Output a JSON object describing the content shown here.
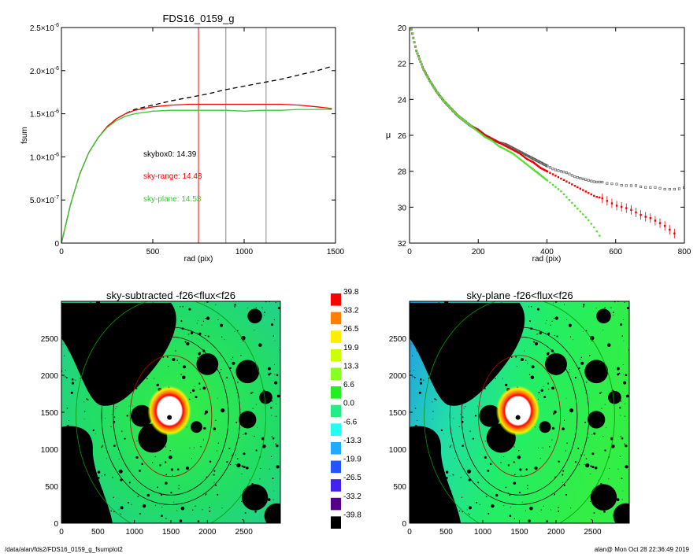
{
  "footer": {
    "left": "/data/alan/fds2/FDS16_0159_g_fsumplot2",
    "right": "alan@  Mon Oct 28 22:36:49 2019"
  },
  "colors": {
    "red": "#ff0000",
    "green": "#33cc33",
    "black": "#000000",
    "gray": "#999999"
  },
  "chart_data": [
    {
      "id": "fsum",
      "type": "line",
      "title": "FDS16_0159_g",
      "xlabel": "rad (pix)",
      "ylabel": "fsum",
      "xlim": [
        0,
        1500
      ],
      "ylim": [
        0,
        2.5e-06
      ],
      "xticks": [
        0,
        500,
        1000,
        1500
      ],
      "yticks": [
        {
          "v": 0,
          "m": "0",
          "e": ""
        },
        {
          "v": 5e-07,
          "m": "5.0×10",
          "e": "-7"
        },
        {
          "v": 1e-06,
          "m": "1.0×10",
          "e": "-6"
        },
        {
          "v": 1.5e-06,
          "m": "1.5×10",
          "e": "-6"
        },
        {
          "v": 2e-06,
          "m": "2.0×10",
          "e": "-6"
        },
        {
          "v": 2.5e-06,
          "m": "2.5×10",
          "e": "-6"
        }
      ],
      "vlines": [
        {
          "x": 750,
          "color": "#ff0000"
        },
        {
          "x": 900,
          "color": "#888888"
        },
        {
          "x": 1120,
          "color": "#888888"
        }
      ],
      "series": [
        {
          "name": "skybox0",
          "color": "#000000",
          "dash": true,
          "x": [
            0,
            50,
            100,
            150,
            200,
            250,
            300,
            350,
            400,
            500,
            600,
            700,
            800,
            900,
            1000,
            1100,
            1200,
            1300,
            1400,
            1480
          ],
          "y": [
            0,
            4.5e-07,
            8e-07,
            1.05e-06,
            1.22e-06,
            1.35e-06,
            1.44e-06,
            1.5e-06,
            1.55e-06,
            1.6e-06,
            1.65e-06,
            1.69e-06,
            1.73e-06,
            1.78e-06,
            1.82e-06,
            1.86e-06,
            1.9e-06,
            1.95e-06,
            2e-06,
            2.05e-06
          ]
        },
        {
          "name": "sky-range",
          "color": "#ff0000",
          "dash": false,
          "x": [
            0,
            50,
            100,
            150,
            200,
            250,
            300,
            350,
            400,
            500,
            600,
            700,
            800,
            900,
            1000,
            1100,
            1200,
            1300,
            1400,
            1480
          ],
          "y": [
            0,
            4.5e-07,
            8e-07,
            1.05e-06,
            1.22e-06,
            1.35e-06,
            1.44e-06,
            1.5e-06,
            1.54e-06,
            1.58e-06,
            1.6e-06,
            1.61e-06,
            1.61e-06,
            1.61e-06,
            1.61e-06,
            1.61e-06,
            1.61e-06,
            1.6e-06,
            1.58e-06,
            1.56e-06
          ]
        },
        {
          "name": "sky-plane",
          "color": "#33cc33",
          "dash": false,
          "x": [
            0,
            50,
            100,
            150,
            200,
            250,
            300,
            350,
            400,
            500,
            600,
            700,
            800,
            900,
            1000,
            1100,
            1200,
            1300,
            1400,
            1480
          ],
          "y": [
            0,
            4.5e-07,
            8e-07,
            1.05e-06,
            1.22e-06,
            1.34e-06,
            1.42e-06,
            1.47e-06,
            1.5e-06,
            1.53e-06,
            1.54e-06,
            1.54e-06,
            1.54e-06,
            1.54e-06,
            1.53e-06,
            1.54e-06,
            1.54e-06,
            1.55e-06,
            1.55e-06,
            1.55e-06
          ]
        }
      ],
      "annotations": [
        {
          "text": "skybox0: 14.39",
          "color": "#000000"
        },
        {
          "text": "sky-range: 14.48",
          "color": "#ff0000"
        },
        {
          "text": "sky-plane: 14.53",
          "color": "#33cc33"
        }
      ]
    },
    {
      "id": "mu",
      "type": "scatter",
      "title": "",
      "xlabel": "rad (pix)",
      "ylabel": "μ",
      "xlim": [
        0,
        800
      ],
      "ylim": [
        32,
        20
      ],
      "xticks": [
        0,
        200,
        400,
        600,
        800
      ],
      "yticks": [
        20,
        22,
        24,
        26,
        28,
        30,
        32
      ],
      "series": [
        {
          "name": "skybox0",
          "color": "#555555",
          "x": [
            5,
            20,
            40,
            60,
            80,
            100,
            120,
            140,
            160,
            180,
            200,
            220,
            240,
            260,
            280,
            300,
            320,
            340,
            360,
            380,
            400,
            420,
            440,
            460,
            480,
            500,
            520,
            540,
            560,
            580,
            600,
            620,
            640,
            660,
            680,
            700,
            720,
            740,
            760,
            780,
            800
          ],
          "y": [
            20.1,
            21.3,
            22.3,
            23.0,
            23.6,
            24.1,
            24.5,
            24.9,
            25.2,
            25.5,
            25.7,
            26.0,
            26.2,
            26.4,
            26.5,
            26.7,
            26.9,
            27.1,
            27.3,
            27.5,
            27.7,
            27.9,
            28.0,
            28.1,
            28.3,
            28.4,
            28.5,
            28.6,
            28.6,
            28.7,
            28.7,
            28.8,
            28.8,
            28.8,
            28.9,
            28.9,
            28.9,
            29.0,
            29.0,
            29.0,
            28.9
          ]
        },
        {
          "name": "sky-range",
          "color": "#ee0000",
          "x": [
            5,
            20,
            40,
            60,
            80,
            100,
            120,
            140,
            160,
            180,
            200,
            220,
            240,
            260,
            280,
            300,
            320,
            340,
            360,
            380,
            400,
            420,
            440,
            460,
            480,
            500,
            520,
            540,
            560,
            580,
            600,
            620,
            640,
            660,
            680,
            700,
            720,
            740,
            760,
            780
          ],
          "y": [
            20.1,
            21.3,
            22.3,
            23.0,
            23.6,
            24.1,
            24.5,
            24.9,
            25.2,
            25.5,
            25.7,
            26.0,
            26.2,
            26.4,
            26.6,
            26.8,
            27.0,
            27.3,
            27.5,
            27.8,
            28.0,
            28.2,
            28.4,
            28.6,
            28.8,
            29.0,
            29.2,
            29.4,
            29.5,
            29.7,
            29.9,
            30.0,
            30.1,
            30.3,
            30.5,
            30.6,
            30.8,
            31.0,
            31.3,
            31.6
          ]
        },
        {
          "name": "sky-plane",
          "color": "#55dd33",
          "x": [
            5,
            20,
            40,
            60,
            80,
            100,
            120,
            140,
            160,
            180,
            200,
            220,
            240,
            260,
            280,
            300,
            320,
            340,
            360,
            380,
            400,
            420,
            440,
            460,
            480,
            500,
            520,
            540,
            560
          ],
          "y": [
            20.1,
            21.3,
            22.3,
            23.0,
            23.6,
            24.1,
            24.5,
            24.9,
            25.2,
            25.5,
            25.8,
            26.1,
            26.3,
            26.6,
            26.8,
            27.0,
            27.3,
            27.6,
            27.9,
            28.2,
            28.5,
            28.8,
            29.1,
            29.5,
            29.9,
            30.3,
            30.7,
            31.2,
            31.8
          ]
        }
      ]
    },
    {
      "id": "img1",
      "type": "heatmap",
      "title": "sky-subtracted -f26<flux<f26",
      "xlim": [
        0,
        3000
      ],
      "ylim": [
        0,
        3000
      ],
      "xticks": [
        0,
        500,
        1000,
        1500,
        2000,
        2500
      ],
      "yticks": [
        0,
        500,
        1000,
        1500,
        2000,
        2500
      ],
      "center": [
        1500,
        1450
      ],
      "ellipses": [
        {
          "rx": 560,
          "ry": 820,
          "color": "#bb0000"
        },
        {
          "rx": 790,
          "ry": 1070,
          "color": "#000000"
        },
        {
          "rx": 950,
          "ry": 1200,
          "color": "#000000"
        },
        {
          "rx": 1300,
          "ry": 1600,
          "color": "#009900"
        }
      ]
    },
    {
      "id": "img2",
      "type": "heatmap",
      "title": "sky-plane -f26<flux<f26",
      "xlim": [
        0,
        3000
      ],
      "ylim": [
        0,
        3000
      ],
      "xticks": [
        0,
        500,
        1000,
        1500,
        2000,
        2500
      ],
      "yticks": [
        0,
        500,
        1000,
        1500,
        2000,
        2500
      ],
      "center": [
        1500,
        1450
      ],
      "ellipses": [
        {
          "rx": 560,
          "ry": 820,
          "color": "#bb0000"
        },
        {
          "rx": 790,
          "ry": 1070,
          "color": "#000000"
        },
        {
          "rx": 950,
          "ry": 1200,
          "color": "#000000"
        },
        {
          "rx": 1300,
          "ry": 1600,
          "color": "#009900"
        }
      ]
    },
    {
      "id": "colorbar",
      "type": "colorbar",
      "levels": [
        {
          "label": "39.8",
          "color": "#ff0000"
        },
        {
          "label": "33.2",
          "color": "#ff8000"
        },
        {
          "label": "26.5",
          "color": "#ffee00"
        },
        {
          "label": "19.9",
          "color": "#ccff00"
        },
        {
          "label": "13.3",
          "color": "#88ff22"
        },
        {
          "label": "6.6",
          "color": "#22ee22"
        },
        {
          "label": "0.0",
          "color": "#22ee88"
        },
        {
          "label": "-6.6",
          "color": "#22ffee"
        },
        {
          "label": "-13.3",
          "color": "#22aaff"
        },
        {
          "label": "-19.9",
          "color": "#2255ff"
        },
        {
          "label": "-26.5",
          "color": "#4422ee"
        },
        {
          "label": "-33.2",
          "color": "#550088"
        },
        {
          "label": "-39.8",
          "color": "#000000"
        }
      ]
    }
  ]
}
